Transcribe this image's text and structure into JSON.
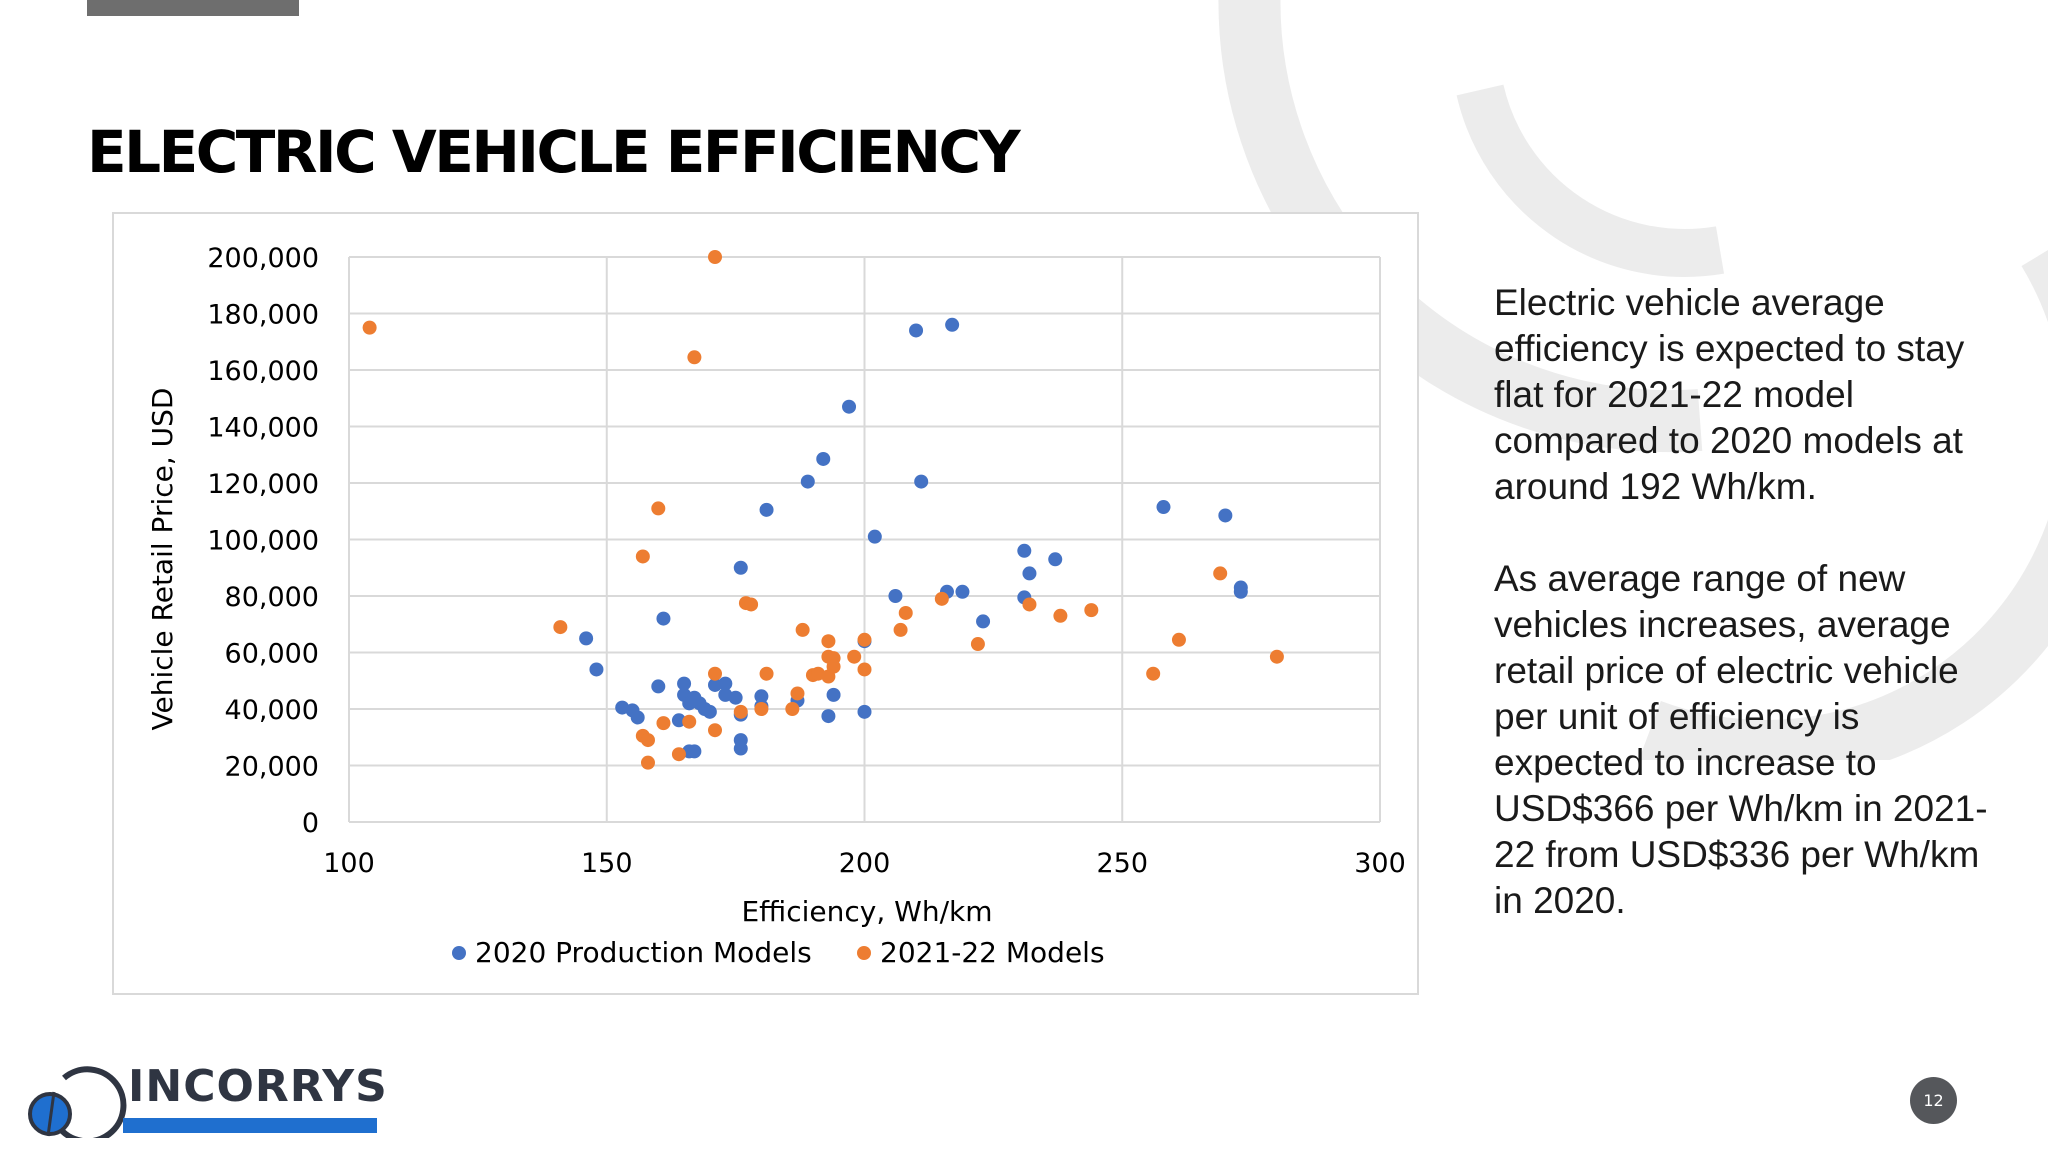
{
  "slide": {
    "title": "ELECTRIC VEHICLE EFFICIENCY",
    "page_number": "12",
    "logo_text": "INCORRYS",
    "side_text": [
      "Electric vehicle average efficiency is expected to stay flat for 2021-22 model compared to 2020 models at around 192 Wh/km.",
      "As average range of new vehicles increases, average retail price of electric vehicle per unit of efficiency is expected to increase to USD$366 per Wh/km in 2021-22 from USD$336 per Wh/km in 2020."
    ],
    "colors": {
      "logo_blue": "#1f6fcf",
      "logo_dark": "#2f3542",
      "top_bar": "#6e6e6e"
    }
  },
  "chart_data": {
    "type": "scatter",
    "xlabel": "Efficiency, Wh/km",
    "ylabel": "Vehicle Retail Price, USD",
    "xlim": [
      100,
      300
    ],
    "ylim": [
      0,
      200000
    ],
    "x_ticks": [
      100,
      150,
      200,
      250,
      300
    ],
    "x_tick_labels": [
      "100",
      "150",
      "200",
      "250",
      "300"
    ],
    "y_ticks": [
      0,
      20000,
      40000,
      60000,
      80000,
      100000,
      120000,
      140000,
      160000,
      180000,
      200000
    ],
    "y_tick_labels": [
      "0",
      "20,000",
      "40,000",
      "60,000",
      "80,000",
      "100,000",
      "120,000",
      "140,000",
      "160,000",
      "180,000",
      "200,000"
    ],
    "grid": true,
    "legend_position": "bottom",
    "series": [
      {
        "name": "2020 Production Models",
        "color": "#4472c4",
        "points": [
          [
            146,
            65000
          ],
          [
            148,
            54000
          ],
          [
            153,
            40500
          ],
          [
            155,
            39500
          ],
          [
            156,
            37000
          ],
          [
            160,
            48000
          ],
          [
            161,
            72000
          ],
          [
            164,
            36000
          ],
          [
            165,
            49000
          ],
          [
            165,
            45000
          ],
          [
            166,
            42000
          ],
          [
            166,
            25000
          ],
          [
            167,
            44000
          ],
          [
            167,
            25000
          ],
          [
            168,
            42000
          ],
          [
            169,
            40000
          ],
          [
            170,
            39000
          ],
          [
            171,
            48500
          ],
          [
            173,
            49000
          ],
          [
            173,
            45000
          ],
          [
            175,
            44000
          ],
          [
            176,
            90000
          ],
          [
            176,
            38000
          ],
          [
            176,
            29000
          ],
          [
            176,
            26000
          ],
          [
            180,
            44500
          ],
          [
            180,
            41000
          ],
          [
            181,
            110500
          ],
          [
            187,
            43000
          ],
          [
            189,
            120500
          ],
          [
            192,
            128500
          ],
          [
            193,
            37500
          ],
          [
            194,
            45000
          ],
          [
            197,
            147000
          ],
          [
            200,
            64000
          ],
          [
            200,
            39000
          ],
          [
            202,
            101000
          ],
          [
            206,
            80000
          ],
          [
            210,
            174000
          ],
          [
            211,
            120500
          ],
          [
            216,
            81500
          ],
          [
            217,
            176000
          ],
          [
            219,
            81500
          ],
          [
            223,
            71000
          ],
          [
            231,
            96000
          ],
          [
            231,
            79500
          ],
          [
            232,
            88000
          ],
          [
            237,
            93000
          ],
          [
            258,
            111500
          ],
          [
            270,
            108500
          ],
          [
            273,
            83000
          ],
          [
            273,
            81500
          ]
        ]
      },
      {
        "name": "2021-22 Models",
        "color": "#ed7d31",
        "points": [
          [
            104,
            175000
          ],
          [
            141,
            69000
          ],
          [
            157,
            94000
          ],
          [
            157,
            30500
          ],
          [
            158,
            29000
          ],
          [
            158,
            21000
          ],
          [
            160,
            111000
          ],
          [
            161,
            35000
          ],
          [
            164,
            24000
          ],
          [
            166,
            35500
          ],
          [
            167,
            164500
          ],
          [
            171,
            200000
          ],
          [
            171,
            52500
          ],
          [
            171,
            32500
          ],
          [
            176,
            39000
          ],
          [
            177,
            77500
          ],
          [
            178,
            77000
          ],
          [
            180,
            40000
          ],
          [
            181,
            52500
          ],
          [
            186,
            40000
          ],
          [
            187,
            45500
          ],
          [
            188,
            68000
          ],
          [
            190,
            52000
          ],
          [
            191,
            52500
          ],
          [
            193,
            64000
          ],
          [
            193,
            58500
          ],
          [
            193,
            51500
          ],
          [
            194,
            58000
          ],
          [
            194,
            55000
          ],
          [
            198,
            58500
          ],
          [
            200,
            64500
          ],
          [
            200,
            54000
          ],
          [
            207,
            68000
          ],
          [
            208,
            74000
          ],
          [
            215,
            79000
          ],
          [
            222,
            63000
          ],
          [
            232,
            77000
          ],
          [
            238,
            73000
          ],
          [
            244,
            75000
          ],
          [
            256,
            52500
          ],
          [
            261,
            64500
          ],
          [
            269,
            88000
          ],
          [
            280,
            58500
          ]
        ]
      }
    ]
  }
}
